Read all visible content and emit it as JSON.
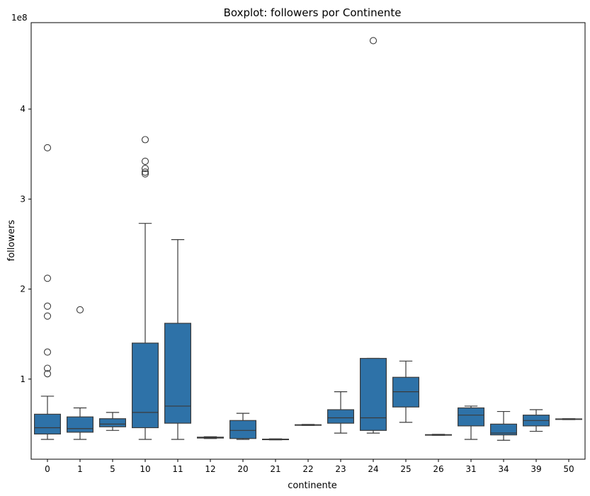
{
  "chart_data": {
    "type": "box",
    "title": "Boxplot: followers por Continente",
    "xlabel": "continente",
    "ylabel": "followers",
    "y_multiplier_label": "1e8",
    "y_unit_scale": 100000000,
    "ylim": [
      11000000,
      496000000
    ],
    "yticks": [
      100000000,
      200000000,
      300000000,
      400000000
    ],
    "ytick_labels": [
      "1",
      "2",
      "3",
      "4"
    ],
    "box_color": "#2e72a8",
    "line_color": "#3b3b3b",
    "categories": [
      "0",
      "1",
      "5",
      "10",
      "11",
      "12",
      "20",
      "21",
      "22",
      "23",
      "24",
      "25",
      "26",
      "31",
      "34",
      "39",
      "50"
    ],
    "boxes": [
      {
        "category": "0",
        "whisker_low": 33000000,
        "q1": 39000000,
        "median": 46000000,
        "q3": 61000000,
        "whisker_high": 81000000,
        "outliers": [
          357000000,
          212000000,
          181000000,
          170000000,
          130000000,
          112000000,
          106000000
        ]
      },
      {
        "category": "1",
        "whisker_low": 33000000,
        "q1": 41000000,
        "median": 45000000,
        "q3": 58000000,
        "whisker_high": 68000000,
        "outliers": [
          177000000
        ]
      },
      {
        "category": "5",
        "whisker_low": 43000000,
        "q1": 47000000,
        "median": 50000000,
        "q3": 56000000,
        "whisker_high": 63000000,
        "outliers": []
      },
      {
        "category": "10",
        "whisker_low": 33000000,
        "q1": 46000000,
        "median": 63000000,
        "q3": 140000000,
        "whisker_high": 273000000,
        "outliers": [
          366000000,
          342000000,
          334000000,
          330000000,
          328000000
        ]
      },
      {
        "category": "11",
        "whisker_low": 33000000,
        "q1": 51000000,
        "median": 70000000,
        "q3": 162000000,
        "whisker_high": 255000000,
        "outliers": []
      },
      {
        "category": "12",
        "whisker_low": 34000000,
        "q1": 34500000,
        "median": 35000000,
        "q3": 35500000,
        "whisker_high": 36000000,
        "outliers": []
      },
      {
        "category": "20",
        "whisker_low": 33000000,
        "q1": 34000000,
        "median": 43000000,
        "q3": 54000000,
        "whisker_high": 62000000,
        "outliers": []
      },
      {
        "category": "21",
        "whisker_low": 32500000,
        "q1": 32800000,
        "median": 33000000,
        "q3": 33300000,
        "whisker_high": 33600000,
        "outliers": []
      },
      {
        "category": "22",
        "whisker_low": 48500000,
        "q1": 48800000,
        "median": 49000000,
        "q3": 49300000,
        "whisker_high": 49600000,
        "outliers": []
      },
      {
        "category": "23",
        "whisker_low": 40000000,
        "q1": 51000000,
        "median": 57000000,
        "q3": 66000000,
        "whisker_high": 86000000,
        "outliers": []
      },
      {
        "category": "24",
        "whisker_low": 40000000,
        "q1": 43000000,
        "median": 57000000,
        "q3": 123000000,
        "whisker_high": 123000000,
        "outliers": [
          476000000
        ]
      },
      {
        "category": "25",
        "whisker_low": 52000000,
        "q1": 69000000,
        "median": 86000000,
        "q3": 102000000,
        "whisker_high": 120000000,
        "outliers": []
      },
      {
        "category": "26",
        "whisker_low": 37500000,
        "q1": 37800000,
        "median": 38000000,
        "q3": 38300000,
        "whisker_high": 38600000,
        "outliers": []
      },
      {
        "category": "31",
        "whisker_low": 33000000,
        "q1": 48000000,
        "median": 60000000,
        "q3": 68000000,
        "whisker_high": 70000000,
        "outliers": []
      },
      {
        "category": "34",
        "whisker_low": 32000000,
        "q1": 38000000,
        "median": 40000000,
        "q3": 50000000,
        "whisker_high": 64000000,
        "outliers": []
      },
      {
        "category": "39",
        "whisker_low": 42000000,
        "q1": 48000000,
        "median": 54000000,
        "q3": 60000000,
        "whisker_high": 66000000,
        "outliers": []
      },
      {
        "category": "50",
        "whisker_low": 55000000,
        "q1": 55300000,
        "median": 55500000,
        "q3": 55800000,
        "whisker_high": 56000000,
        "outliers": []
      }
    ]
  }
}
